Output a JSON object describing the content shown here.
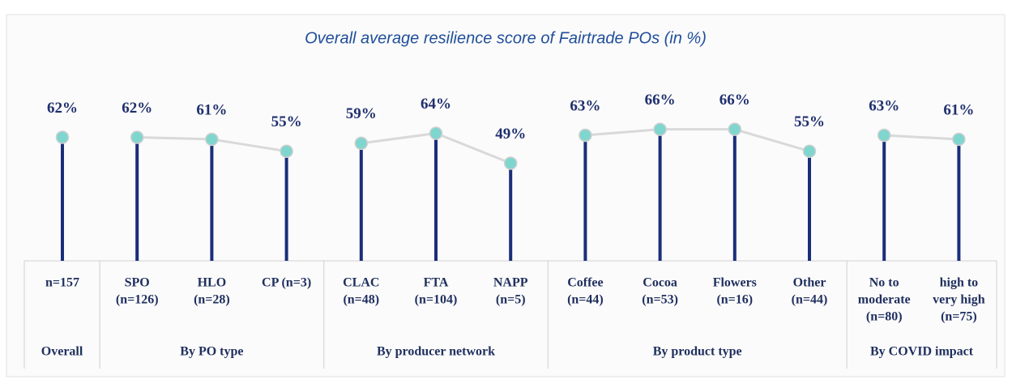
{
  "chart_data": {
    "type": "lollipop",
    "title": "Overall average resilience score of Fairtrade POs (in %)",
    "ylim": [
      0,
      100
    ],
    "stem_color": "#1b2e7a",
    "marker_color": "#7fd6cf",
    "connector_color": "#d9d9d9",
    "groups": [
      {
        "name": "Overall",
        "categories": [
          [
            "n=157"
          ]
        ],
        "values": [
          62
        ],
        "value_labels": [
          "62%"
        ]
      },
      {
        "name": "By PO type",
        "categories": [
          [
            "SPO",
            "(n=126)"
          ],
          [
            "HLO",
            "(n=28)"
          ],
          [
            "CP (n=3)"
          ]
        ],
        "values": [
          62,
          61,
          55
        ],
        "value_labels": [
          "62%",
          "61%",
          "55%"
        ]
      },
      {
        "name": "By producer network",
        "categories": [
          [
            "CLAC",
            "(n=48)"
          ],
          [
            "FTA",
            "(n=104)"
          ],
          [
            "NAPP",
            "(n=5)"
          ]
        ],
        "values": [
          59,
          64,
          49
        ],
        "value_labels": [
          "59%",
          "64%",
          "49%"
        ]
      },
      {
        "name": "By product type",
        "categories": [
          [
            "Coffee",
            "(n=44)"
          ],
          [
            "Cocoa",
            "(n=53)"
          ],
          [
            "Flowers",
            "(n=16)"
          ],
          [
            "Other",
            "(n=44)"
          ]
        ],
        "values": [
          63,
          66,
          66,
          55
        ],
        "value_labels": [
          "63%",
          "66%",
          "66%",
          "55%"
        ]
      },
      {
        "name": "By COVID impact",
        "categories": [
          [
            "No to",
            "moderate",
            "(n=80)"
          ],
          [
            "high to",
            "very high",
            "(n=75)"
          ]
        ],
        "values": [
          63,
          61
        ],
        "value_labels": [
          "63%",
          "61%"
        ]
      }
    ]
  }
}
